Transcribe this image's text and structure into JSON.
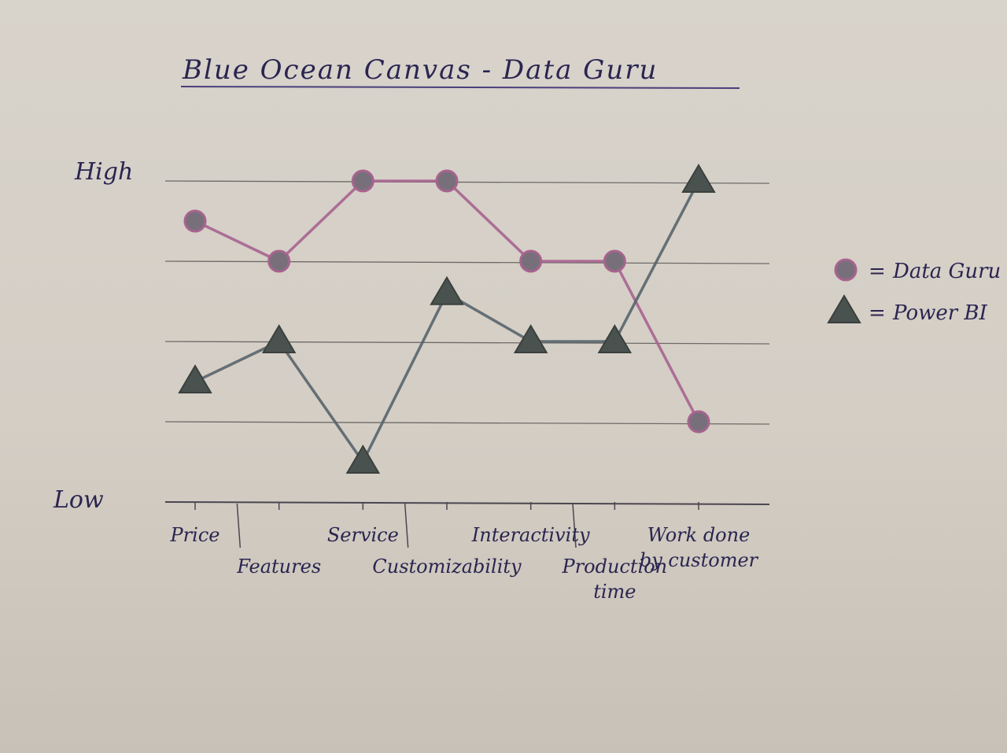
{
  "chart_data": {
    "type": "line",
    "title": "Blue Ocean Canvas - Data Guru",
    "ylabel_high": "High",
    "ylabel_low": "Low",
    "ylim": [
      0,
      4
    ],
    "grid": true,
    "categories": [
      [
        "Price"
      ],
      [
        "Features"
      ],
      [
        "Service"
      ],
      [
        "Customizability"
      ],
      [
        "Interactivity"
      ],
      [
        "Production",
        "time"
      ],
      [
        "Work done",
        "by customer"
      ]
    ],
    "series": [
      {
        "name": "Data Guru",
        "marker": "circle",
        "color": "#a7638f",
        "marker_color": "#77707a",
        "values": [
          3.5,
          3.0,
          4.0,
          4.0,
          3.0,
          3.0,
          1.0
        ]
      },
      {
        "name": "Power BI",
        "marker": "triangle",
        "color": "#58646c",
        "marker_color": "#4a524f",
        "values": [
          1.5,
          2.0,
          0.5,
          2.6,
          2.0,
          2.0,
          4.0
        ]
      }
    ],
    "legend_placement": "right",
    "legend_separator": "="
  }
}
